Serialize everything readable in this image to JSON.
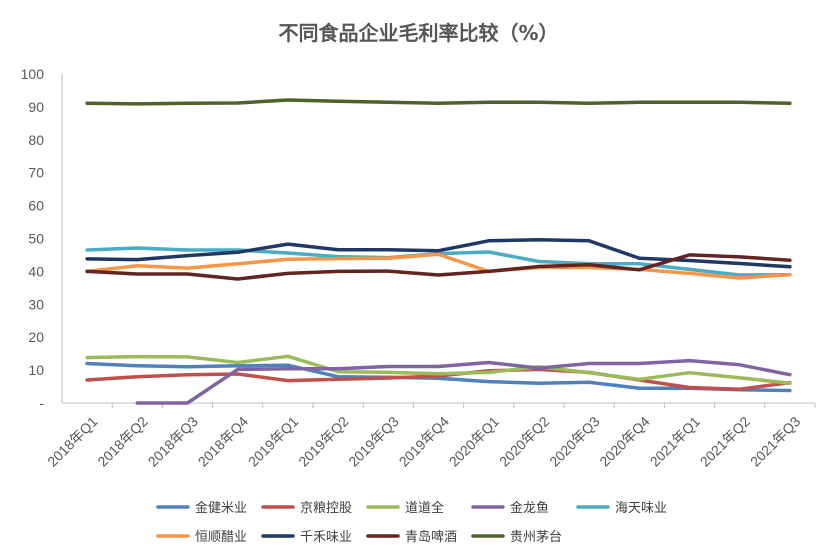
{
  "chart_data": {
    "type": "line",
    "title": "不同食品企业毛利率比较（%）",
    "xlabel": "",
    "ylabel": "",
    "ylim": [
      0,
      100
    ],
    "y_ticks": [
      "100",
      "90",
      "80",
      "70",
      "60",
      "50",
      "40",
      "30",
      "20",
      "10",
      "-"
    ],
    "grid": false,
    "legend_position": "bottom",
    "categories": [
      "2018年Q1",
      "2018年Q2",
      "2018年Q3",
      "2018年Q4",
      "2019年Q1",
      "2019年Q2",
      "2019年Q3",
      "2019年Q4",
      "2020年Q1",
      "2020年Q2",
      "2020年Q3",
      "2020年Q4",
      "2021年Q1",
      "2021年Q2",
      "2021年Q3"
    ],
    "series": [
      {
        "name": "金健米业",
        "color": "#4F81BD",
        "values": [
          12.0,
          11.3,
          11.0,
          11.3,
          11.5,
          8.0,
          7.8,
          7.5,
          6.5,
          6.0,
          6.3,
          4.5,
          4.5,
          4.0,
          3.8
        ]
      },
      {
        "name": "京粮控股",
        "color": "#C0504D",
        "values": [
          7.0,
          8.0,
          8.6,
          8.8,
          6.8,
          7.2,
          7.6,
          8.2,
          9.8,
          10.2,
          9.3,
          7.0,
          4.7,
          4.2,
          6.2
        ]
      },
      {
        "name": "道道全",
        "color": "#9BBB59",
        "values": [
          13.8,
          14.1,
          14.0,
          12.3,
          14.2,
          9.5,
          9.3,
          8.9,
          9.3,
          11.0,
          9.2,
          7.2,
          9.2,
          7.7,
          6.0
        ]
      },
      {
        "name": "金龙鱼",
        "color": "#8064A2",
        "values": [
          null,
          0.0,
          0.0,
          10.2,
          10.4,
          10.4,
          11.1,
          11.1,
          12.3,
          10.6,
          12.0,
          12.0,
          12.9,
          11.6,
          8.6
        ]
      },
      {
        "name": "海天味业",
        "color": "#4BACC6",
        "values": [
          46.5,
          47.1,
          46.5,
          46.5,
          45.6,
          44.5,
          44.2,
          45.4,
          45.9,
          43.0,
          42.3,
          42.3,
          40.6,
          38.9,
          39.0
        ]
      },
      {
        "name": "恒顺醋业",
        "color": "#F79646",
        "values": [
          40.0,
          41.7,
          41.0,
          42.3,
          43.7,
          43.9,
          44.0,
          45.2,
          40.0,
          41.2,
          41.2,
          40.6,
          39.4,
          38.0,
          39.0
        ]
      },
      {
        "name": "千禾味业",
        "color": "#1F3864",
        "values": [
          43.8,
          43.6,
          44.8,
          45.8,
          48.3,
          46.6,
          46.6,
          46.3,
          49.3,
          49.6,
          49.3,
          44.0,
          43.3,
          42.4,
          41.4
        ]
      },
      {
        "name": "青岛啤酒",
        "color": "#632523",
        "values": [
          40.0,
          39.2,
          39.2,
          37.7,
          39.4,
          40.0,
          40.1,
          38.9,
          40.0,
          41.5,
          42.0,
          40.5,
          45.0,
          44.4,
          43.4
        ]
      },
      {
        "name": "贵州茅台",
        "color": "#4F6228",
        "values": [
          91.1,
          90.9,
          91.1,
          91.2,
          92.1,
          91.7,
          91.4,
          91.1,
          91.4,
          91.4,
          91.1,
          91.4,
          91.4,
          91.4,
          91.1
        ]
      }
    ]
  }
}
